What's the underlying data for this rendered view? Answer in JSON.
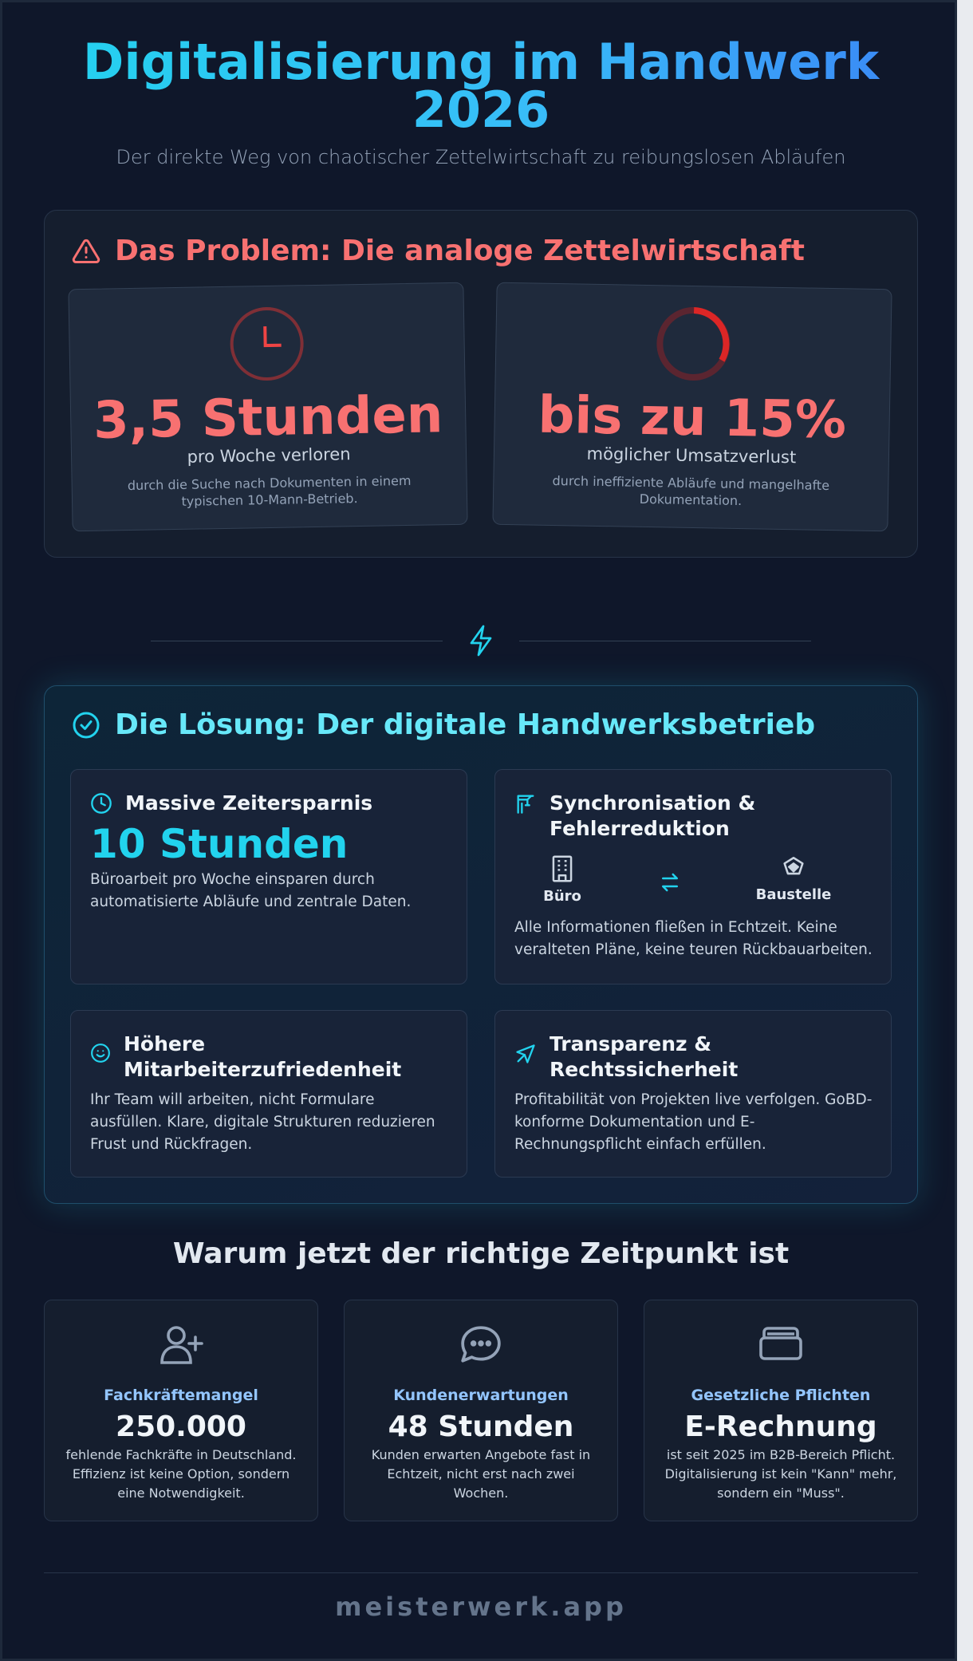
{
  "header": {
    "title_line1": "Digitalisierung im Handwerk",
    "title_line2": "2026",
    "subtitle": "Der direkte Weg von chaotischer Zettelwirtschaft zu reibungslosen Abläufen"
  },
  "problem": {
    "heading": "Das Problem: Die analoge Zettelwirtschaft",
    "cards": [
      {
        "icon": "clock-icon",
        "big": "3,5 Stunden",
        "sub": "pro Woche verloren",
        "desc": "durch die Suche nach Dokumenten in einem typischen 10-Mann-Betrieb."
      },
      {
        "icon": "donut-progress-icon",
        "big": "bis zu 15%",
        "sub": "möglicher Umsatzverlust",
        "desc": "durch ineffiziente Abläufe und mangelhafte Dokumentation."
      }
    ]
  },
  "solution": {
    "heading": "Die Lösung: Der digitale Handwerksbetrieb",
    "cards": [
      {
        "icon": "clock-icon",
        "title": "Massive Zeitersparnis",
        "big": "10 Stunden",
        "desc": "Büroarbeit pro Woche einsparen durch automatisierte Abläufe und zentrale Daten."
      },
      {
        "icon": "crane-icon",
        "title": "Synchronisation & Fehlerreduktion",
        "node_left": "Büro",
        "node_right": "Baustelle",
        "desc": "Alle Informationen fließen in Echtzeit. Keine veralteten Pläne, keine teuren Rückbauarbeiten."
      },
      {
        "icon": "smile-icon",
        "title": "Höhere Mitarbeiterzufriedenheit",
        "desc": "Ihr Team will arbeiten, nicht Formulare ausfüllen. Klare, digitale Strukturen reduzieren Frust und Rückfragen."
      },
      {
        "icon": "pointer-icon",
        "title": "Transparenz & Rechtssicherheit",
        "desc": "Profitabilität von Projekten live verfolgen. GoBD-konforme Dokumentation und E-Rechnungspflicht einfach erfüllen."
      }
    ]
  },
  "why": {
    "heading": "Warum jetzt der richtige Zeitpunkt ist",
    "cards": [
      {
        "icon": "user-plus-icon",
        "label": "Fachkräftemangel",
        "big": "250.000",
        "desc": "fehlende Fachkräfte in Deutschland. Effizienz ist keine Option, sondern eine Notwendigkeit."
      },
      {
        "icon": "chat-bubble-icon",
        "label": "Kundenerwartungen",
        "big": "48 Stunden",
        "desc": "Kunden erwarten Angebote fast in Echtzeit, nicht erst nach zwei Wochen."
      },
      {
        "icon": "document-tray-icon",
        "label": "Gesetzliche Pflichten",
        "big": "E-Rechnung",
        "desc": "ist seit 2025 im B2B-Bereich Pflicht. Digitalisierung ist kein \"Kann\" mehr, sondern ein \"Muss\"."
      }
    ]
  },
  "footer": {
    "brand": "meisterwerk.app"
  },
  "colors": {
    "background": "#0f172a",
    "problem_accent": "#f87171",
    "solution_accent": "#67e8f9",
    "highlight": "#22d3ee",
    "why_label": "#93c5fd"
  }
}
